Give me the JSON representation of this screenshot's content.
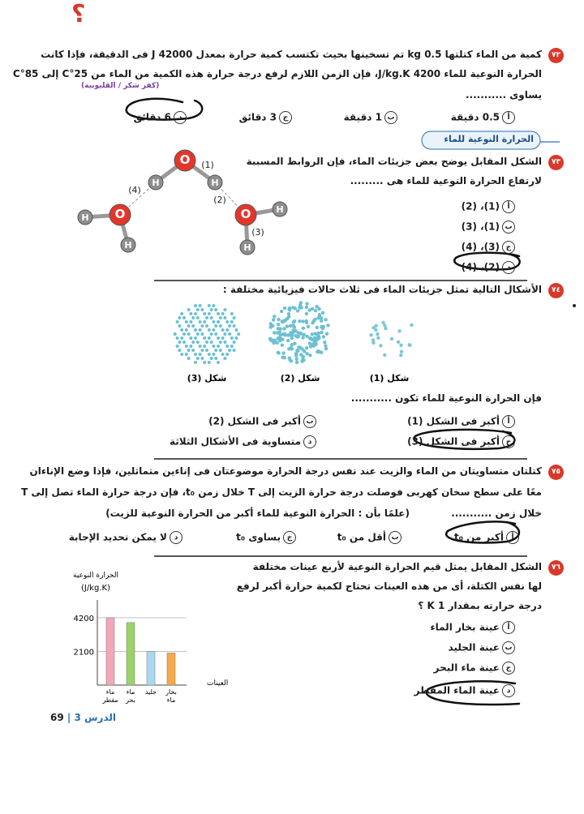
{
  "page_mark": "؟",
  "option_letters": [
    "أ",
    "ب",
    "ج",
    "د"
  ],
  "questions": [
    {
      "number": "٧٢",
      "lines": [
        "كمية من الماء كتلتها 0.5 kg تم تسخينها بحيث تكتسب كمية حرارة بمعدل 42000 J فى الدقيقة، فإذا كانت",
        "الحرارة النوعية للماء 4200 J/kg.K، فإن الزمن اللازم لرفع درجة حرارة هذه الكمية من الماء من 25°C إلى 85°C",
        "يساوى ..........."
      ],
      "source": "(كفر شكر / القليوبية)",
      "options": [
        "0.5 دقيقة",
        "1 دقيقة",
        "3 دقائق",
        "6 دقائق"
      ]
    },
    {
      "number": "٧٣",
      "section": "الحرارة النوعية للماء",
      "lines": [
        "الشكل المقابل يوضح بعض جزيئات الماء، فإن الروابط المسببة",
        "لارتفاع الحرارة النوعية للماء هى ........."
      ],
      "options": [
        "(1)، (2)",
        "(1)، (3)",
        "(3)، (4)",
        "(2)، (4)"
      ],
      "diagram": {
        "oxygen": "O",
        "hydrogen": "H",
        "bonds": [
          "(1)",
          "(2)",
          "(3)",
          "(4)"
        ]
      }
    },
    {
      "number": "٧٤",
      "lines": [
        "الأشكال التالية تمثل جزيئات الماء فى ثلاث حالات فيزيائية مختلفة :"
      ],
      "figures": [
        "شكل (1)",
        "شكل (2)",
        "شكل (3)"
      ],
      "prompt": "فإن الحرارة النوعية للماء تكون ...........",
      "options": [
        "أكبر فى الشكل (1)",
        "أكبر فى الشكل (2)",
        "أكبر فى الشكل (3)",
        "متساوية فى الأشكال الثلاثة"
      ]
    },
    {
      "number": "٧٥",
      "lines": [
        "كتلتان متساويتان من الماء والزيت عند نفس درجة الحرارة موضوعتان فى إناءين متماثلين، فإذا وضع الإناءان",
        "معًا على سطح سخان كهربى فوصلت درجة حرارة الزيت إلى T خلال زمن t₀، فإن درجة حرارة الماء تصل إلى T",
        "خلال زمن ..........."
      ],
      "note": "(علمًا بأن : الحرارة النوعية للماء أكبر من الحرارة النوعية للزيت)",
      "options": [
        "أكبر من t₀",
        "أقل من t₀",
        "يساوى t₀",
        "لا يمكن تحديد الإجابة"
      ]
    },
    {
      "number": "٧٦",
      "lines": [
        "الشكل المقابل يمثل قيم الحرارة النوعية لأربع عينات مختلفة",
        "لها نفس الكتلة، أى من هذه العينات تحتاج لكمية حرارة أكبر لرفع",
        "درجة حرارته بمقدار 1 K ؟"
      ],
      "options": [
        "عينة بخار الماء",
        "عينة الجليد",
        "عينة ماء البحر",
        "عينة الماء المقطر"
      ],
      "chart": {
        "type": "bar",
        "y_label": "الحرارة النوعية",
        "y_unit": "(J/kg.K)",
        "x_label": "العينات",
        "categories": [
          [
            "ماء",
            "مقطر"
          ],
          [
            "ماء",
            "بحر"
          ],
          [
            "جليد"
          ],
          [
            "بخار",
            "ماء"
          ]
        ],
        "values": [
          4200,
          3900,
          2100,
          2000
        ],
        "colors": [
          "#f3a7b8",
          "#9bd36a",
          "#a9d8f0",
          "#f6a84a"
        ],
        "ylim": [
          0,
          4600
        ],
        "yticks": [
          2100,
          4200
        ]
      }
    }
  ],
  "footer": {
    "lesson": "الدرس 3",
    "page": "69"
  }
}
